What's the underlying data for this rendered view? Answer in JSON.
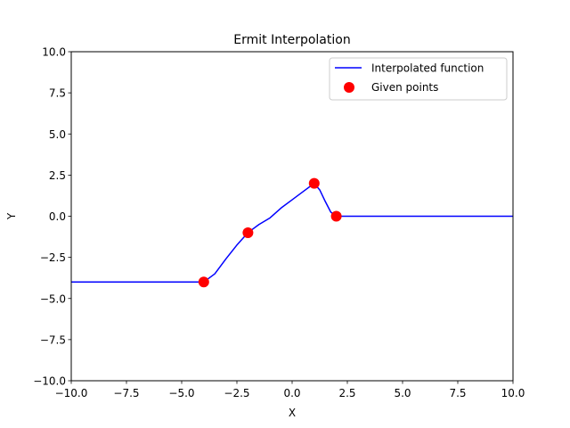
{
  "chart_data": {
    "type": "line",
    "title": "Ermit Interpolation",
    "xlabel": "X",
    "ylabel": "Y",
    "xlim": [
      -10,
      10
    ],
    "ylim": [
      -10,
      10
    ],
    "xticks": [
      -10,
      -7.5,
      -5,
      -2.5,
      0,
      2.5,
      5,
      7.5,
      10
    ],
    "yticks": [
      -10,
      -7.5,
      -5,
      -2.5,
      0,
      2.5,
      5,
      7.5,
      10
    ],
    "xtick_labels": [
      "−10.0",
      "−7.5",
      "−5.0",
      "−2.5",
      "0.0",
      "2.5",
      "5.0",
      "7.5",
      "10.0"
    ],
    "ytick_labels": [
      "−10.0",
      "−7.5",
      "−5.0",
      "−2.5",
      "0.0",
      "2.5",
      "5.0",
      "7.5",
      "10.0"
    ],
    "grid": false,
    "legend_position": "top-right",
    "series": [
      {
        "name": "Interpolated function",
        "kind": "line",
        "color": "#0000ff",
        "x": [
          -10,
          -4,
          -3.5,
          -3,
          -2.5,
          -2,
          -1.5,
          -1,
          -0.5,
          0,
          0.5,
          1,
          1.25,
          1.5,
          1.75,
          2,
          4,
          6,
          8,
          10
        ],
        "y": [
          -4,
          -4,
          -3.5,
          -2.6,
          -1.75,
          -1,
          -0.5,
          -0.1,
          0.5,
          1.0,
          1.5,
          2,
          1.6,
          0.9,
          0.25,
          0,
          0,
          0,
          0,
          0
        ]
      },
      {
        "name": "Given points",
        "kind": "scatter",
        "color": "#ff0000",
        "x": [
          -4,
          -2,
          1,
          2
        ],
        "y": [
          -4,
          -1,
          2,
          0
        ]
      }
    ]
  }
}
